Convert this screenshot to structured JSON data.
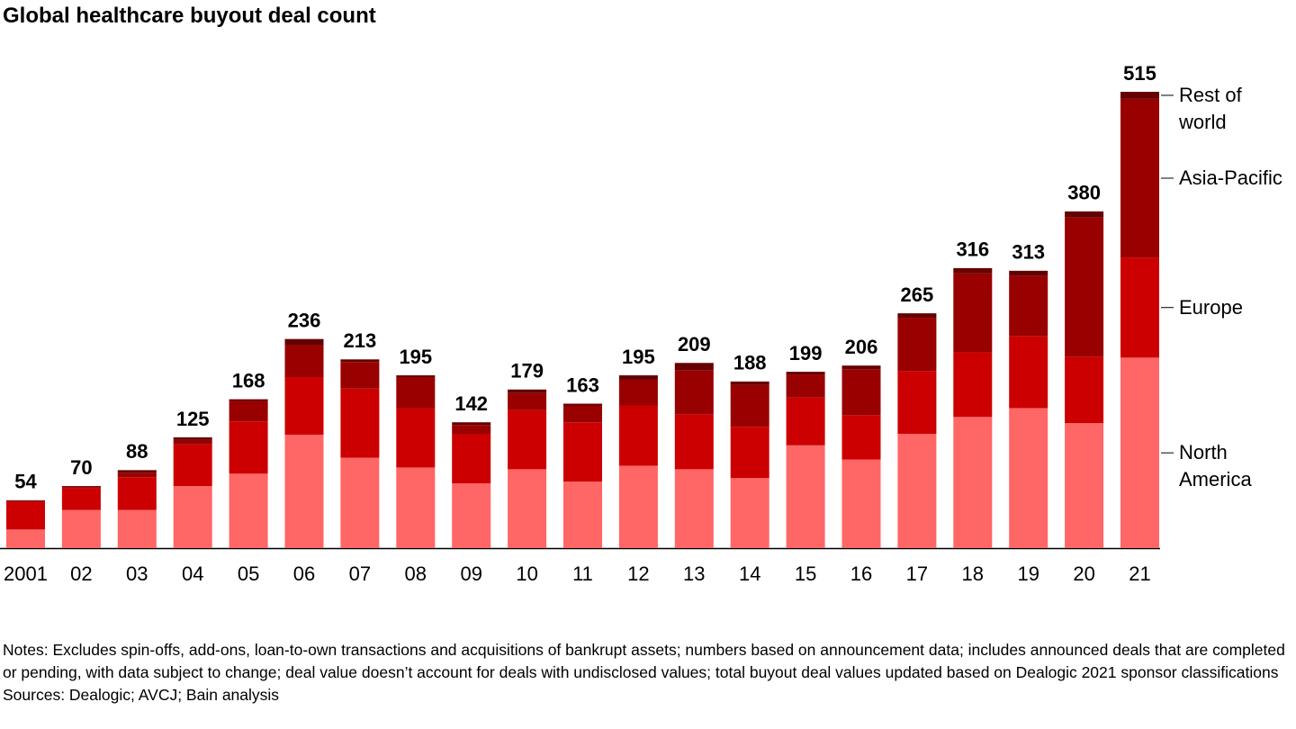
{
  "chart_data": {
    "type": "stacked_bar",
    "title": "Global healthcare buyout deal count",
    "categories": [
      "2001",
      "02",
      "03",
      "04",
      "05",
      "06",
      "07",
      "08",
      "09",
      "10",
      "11",
      "12",
      "13",
      "14",
      "15",
      "16",
      "17",
      "18",
      "19",
      "20",
      "21"
    ],
    "series": [
      {
        "name": "North America",
        "color": "#ff6666",
        "values": [
          21,
          43,
          43,
          70,
          84,
          128,
          102,
          91,
          73,
          89,
          75,
          93,
          89,
          79,
          116,
          100,
          129,
          148,
          158,
          141,
          215
        ]
      },
      {
        "name": "Europe",
        "color": "#cc0000",
        "values": [
          32,
          25,
          37,
          47,
          59,
          65,
          78,
          67,
          56,
          67,
          67,
          68,
          62,
          58,
          54,
          50,
          71,
          73,
          81,
          75,
          113
        ]
      },
      {
        "name": "Asia-Pacific",
        "color": "#990000",
        "values": [
          0,
          1,
          5,
          5,
          23,
          36,
          30,
          35,
          10,
          19,
          19,
          29,
          50,
          47,
          26,
          52,
          60,
          89,
          68,
          157,
          179
        ]
      },
      {
        "name": "Rest of world",
        "color": "#660000",
        "values": [
          1,
          1,
          3,
          3,
          2,
          7,
          3,
          2,
          3,
          4,
          2,
          5,
          8,
          4,
          3,
          4,
          5,
          6,
          6,
          7,
          8
        ]
      }
    ],
    "totals": [
      54,
      70,
      88,
      125,
      168,
      236,
      213,
      195,
      142,
      179,
      163,
      195,
      209,
      188,
      199,
      206,
      265,
      316,
      313,
      380,
      515
    ],
    "notes": "Notes: Excludes spin-offs, add-ons, loan-to-own transactions and acquisitions of bankrupt assets; numbers based on announcement data; includes announced deals that are completed or pending, with data subject to change; deal value doesn’t account for deals with undisclosed values; total buyout deal values updated based on Dealogic 2021 sponsor classifications",
    "sources": "Sources: Dealogic; AVCJ; Bain analysis"
  }
}
